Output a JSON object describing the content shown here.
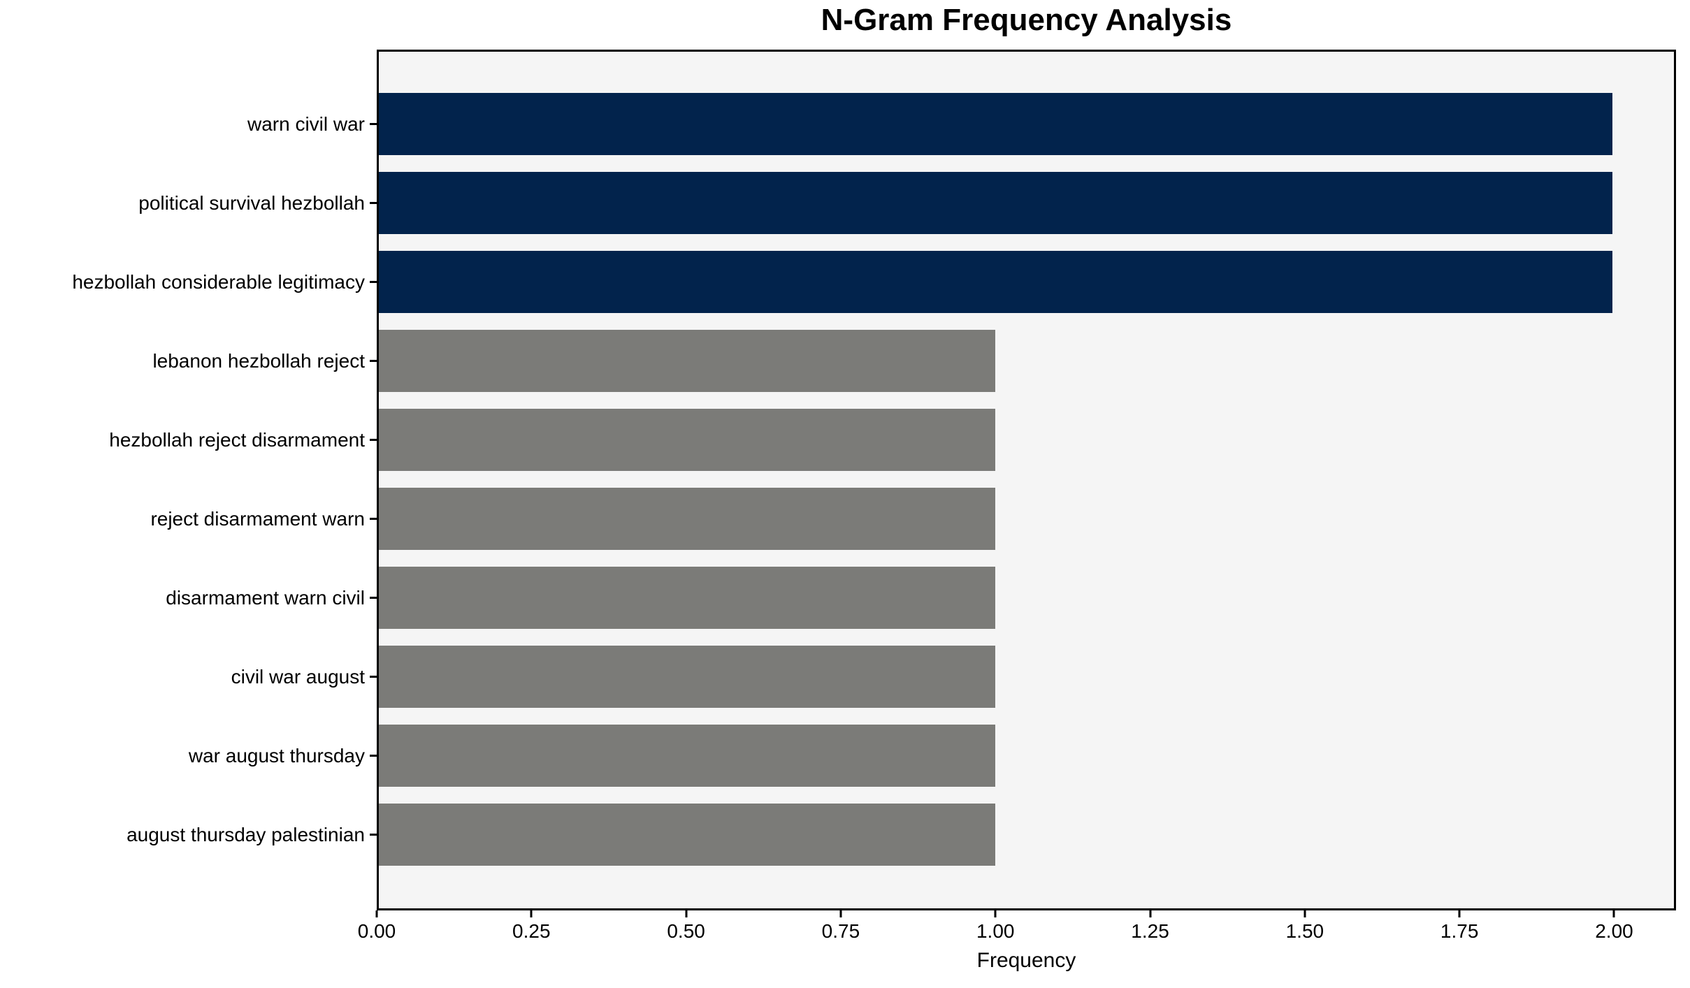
{
  "chart_data": {
    "type": "bar",
    "orientation": "horizontal",
    "title": "N-Gram Frequency Analysis",
    "xlabel": "Frequency",
    "ylabel": "",
    "categories": [
      "warn civil war",
      "political survival hezbollah",
      "hezbollah considerable legitimacy",
      "lebanon hezbollah reject",
      "hezbollah reject disarmament",
      "reject disarmament warn",
      "disarmament warn civil",
      "civil war august",
      "war august thursday",
      "august thursday palestinian"
    ],
    "values": [
      2,
      2,
      2,
      1,
      1,
      1,
      1,
      1,
      1,
      1
    ],
    "bar_colors": [
      "#02234C",
      "#02234C",
      "#02234C",
      "#7B7B78",
      "#7B7B78",
      "#7B7B78",
      "#7B7B78",
      "#7B7B78",
      "#7B7B78",
      "#7B7B78"
    ],
    "xlim": [
      0,
      2.1
    ],
    "xtick_labels": [
      "0.00",
      "0.25",
      "0.50",
      "0.75",
      "1.00",
      "1.25",
      "1.50",
      "1.75",
      "2.00"
    ],
    "xtick_values": [
      0,
      0.25,
      0.5,
      0.75,
      1.0,
      1.25,
      1.5,
      1.75,
      2.0
    ],
    "grid": false,
    "legend": null,
    "colors": {
      "highlight_bar": "#02234C",
      "default_bar": "#7B7B78",
      "plot_background": "#F5F5F5",
      "figure_background": "#FFFFFF",
      "frame": "#000000",
      "text": "#000000"
    }
  }
}
